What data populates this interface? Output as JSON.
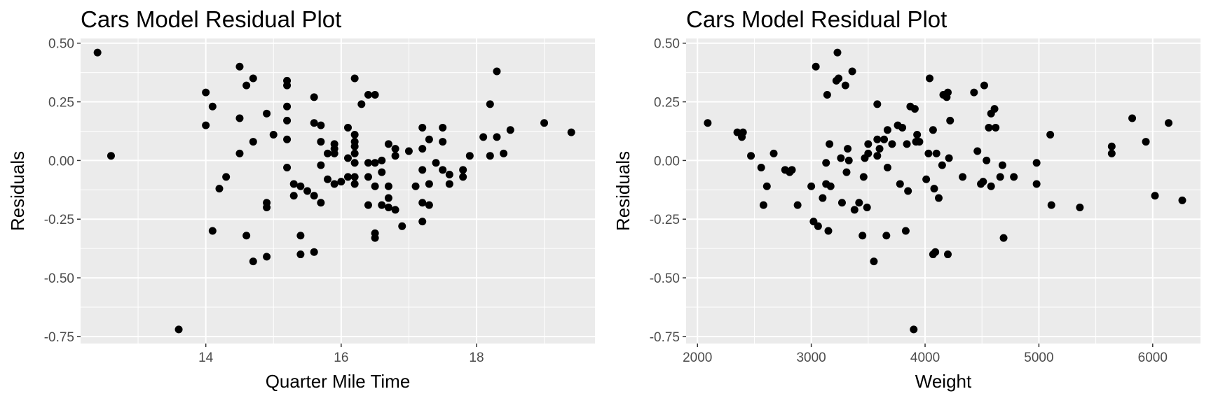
{
  "chart_data": [
    {
      "type": "scatter",
      "title": "Cars Model Residual Plot",
      "xlabel": "Quarter Mile Time",
      "ylabel": "Residuals",
      "xlim": [
        12.15,
        19.75
      ],
      "ylim": [
        -0.78,
        0.52
      ],
      "x_ticks": [
        14,
        16,
        18
      ],
      "x_tick_labels": [
        "14",
        "16",
        "18"
      ],
      "y_ticks": [
        0.5,
        0.25,
        0.0,
        -0.25,
        -0.5,
        -0.75
      ],
      "y_tick_labels": [
        "0.50",
        "0.25",
        "0.00",
        "-0.25",
        "-0.50",
        "-0.75"
      ],
      "grid": true,
      "point_color": "#000000",
      "panel_color": "#ebebeb",
      "points": [
        [
          12.4,
          0.46
        ],
        [
          12.6,
          0.02
        ],
        [
          13.6,
          -0.72
        ],
        [
          14.0,
          0.29
        ],
        [
          14.0,
          0.15
        ],
        [
          14.1,
          0.23
        ],
        [
          14.1,
          -0.3
        ],
        [
          14.2,
          -0.12
        ],
        [
          14.3,
          -0.07
        ],
        [
          14.5,
          0.4
        ],
        [
          14.5,
          0.18
        ],
        [
          14.5,
          0.03
        ],
        [
          14.6,
          0.32
        ],
        [
          14.6,
          -0.32
        ],
        [
          14.7,
          0.35
        ],
        [
          14.7,
          0.08
        ],
        [
          14.7,
          -0.43
        ],
        [
          14.9,
          0.2
        ],
        [
          14.9,
          -0.18
        ],
        [
          14.9,
          -0.2
        ],
        [
          14.9,
          -0.41
        ],
        [
          15.0,
          0.11
        ],
        [
          15.2,
          0.34
        ],
        [
          15.2,
          0.32
        ],
        [
          15.2,
          0.23
        ],
        [
          15.2,
          0.17
        ],
        [
          15.2,
          0.09
        ],
        [
          15.2,
          -0.03
        ],
        [
          15.3,
          -0.1
        ],
        [
          15.3,
          -0.15
        ],
        [
          15.4,
          -0.11
        ],
        [
          15.4,
          -0.32
        ],
        [
          15.4,
          -0.4
        ],
        [
          15.5,
          -0.13
        ],
        [
          15.6,
          0.27
        ],
        [
          15.6,
          0.16
        ],
        [
          15.6,
          -0.15
        ],
        [
          15.6,
          -0.39
        ],
        [
          15.7,
          0.15
        ],
        [
          15.7,
          0.08
        ],
        [
          15.7,
          -0.02
        ],
        [
          15.7,
          -0.18
        ],
        [
          15.8,
          0.03
        ],
        [
          15.8,
          -0.08
        ],
        [
          15.9,
          0.07
        ],
        [
          15.9,
          0.03
        ],
        [
          15.9,
          -0.1
        ],
        [
          15.9,
          0.05
        ],
        [
          16.0,
          -0.09
        ],
        [
          16.1,
          0.14
        ],
        [
          16.1,
          0.01
        ],
        [
          16.1,
          -0.07
        ],
        [
          16.2,
          0.35
        ],
        [
          16.2,
          0.11
        ],
        [
          16.2,
          0.08
        ],
        [
          16.2,
          0.06
        ],
        [
          16.2,
          0.03
        ],
        [
          16.2,
          -0.01
        ],
        [
          16.2,
          -0.07
        ],
        [
          16.2,
          -0.1
        ],
        [
          16.3,
          0.24
        ],
        [
          16.4,
          0.28
        ],
        [
          16.4,
          -0.01
        ],
        [
          16.4,
          -0.07
        ],
        [
          16.4,
          -0.19
        ],
        [
          16.5,
          0.28
        ],
        [
          16.5,
          -0.01
        ],
        [
          16.5,
          -0.11
        ],
        [
          16.5,
          -0.31
        ],
        [
          16.5,
          -0.33
        ],
        [
          16.6,
          0.0
        ],
        [
          16.6,
          -0.05
        ],
        [
          16.6,
          -0.19
        ],
        [
          16.7,
          0.07
        ],
        [
          16.7,
          -0.11
        ],
        [
          16.7,
          -0.16
        ],
        [
          16.7,
          -0.2
        ],
        [
          16.8,
          0.05
        ],
        [
          16.8,
          0.02
        ],
        [
          16.8,
          -0.21
        ],
        [
          16.9,
          -0.28
        ],
        [
          17.0,
          0.04
        ],
        [
          17.1,
          -0.11
        ],
        [
          17.2,
          0.14
        ],
        [
          17.2,
          0.05
        ],
        [
          17.2,
          -0.04
        ],
        [
          17.2,
          -0.18
        ],
        [
          17.2,
          -0.26
        ],
        [
          17.3,
          0.09
        ],
        [
          17.3,
          -0.1
        ],
        [
          17.3,
          -0.19
        ],
        [
          17.4,
          -0.01
        ],
        [
          17.5,
          0.14
        ],
        [
          17.5,
          0.08
        ],
        [
          17.5,
          -0.04
        ],
        [
          17.6,
          -0.06
        ],
        [
          17.6,
          -0.1
        ],
        [
          17.8,
          -0.04
        ],
        [
          17.8,
          -0.07
        ],
        [
          17.9,
          0.02
        ],
        [
          18.1,
          0.1
        ],
        [
          18.2,
          0.24
        ],
        [
          18.2,
          0.02
        ],
        [
          18.3,
          0.38
        ],
        [
          18.3,
          0.1
        ],
        [
          18.4,
          0.03
        ],
        [
          18.5,
          0.13
        ],
        [
          19.0,
          0.16
        ],
        [
          19.4,
          0.12
        ]
      ]
    },
    {
      "type": "scatter",
      "title": "Cars Model Residual Plot",
      "xlabel": "Weight",
      "ylabel": "Residuals",
      "xlim": [
        1900,
        6420
      ],
      "ylim": [
        -0.78,
        0.52
      ],
      "x_ticks": [
        2000,
        3000,
        4000,
        5000,
        6000
      ],
      "x_tick_labels": [
        "2000",
        "3000",
        "4000",
        "5000",
        "6000"
      ],
      "y_ticks": [
        0.5,
        0.25,
        0.0,
        -0.25,
        -0.5,
        -0.75
      ],
      "y_tick_labels": [
        "0.50",
        "0.25",
        "0.00",
        "-0.25",
        "-0.50",
        "-0.75"
      ],
      "grid": true,
      "point_color": "#000000",
      "panel_color": "#ebebeb",
      "points": [
        [
          2090,
          0.16
        ],
        [
          2350,
          0.12
        ],
        [
          2390,
          0.1
        ],
        [
          2400,
          0.12
        ],
        [
          2470,
          0.02
        ],
        [
          2560,
          -0.03
        ],
        [
          2580,
          -0.19
        ],
        [
          2610,
          -0.11
        ],
        [
          2670,
          0.03
        ],
        [
          2770,
          -0.04
        ],
        [
          2810,
          -0.05
        ],
        [
          2830,
          -0.04
        ],
        [
          2880,
          -0.19
        ],
        [
          3000,
          -0.11
        ],
        [
          3020,
          -0.26
        ],
        [
          3040,
          0.4
        ],
        [
          3060,
          -0.28
        ],
        [
          3100,
          -0.16
        ],
        [
          3130,
          -0.1
        ],
        [
          3130,
          -0.01
        ],
        [
          3140,
          0.28
        ],
        [
          3150,
          -0.3
        ],
        [
          3160,
          0.07
        ],
        [
          3170,
          -0.11
        ],
        [
          3220,
          0.34
        ],
        [
          3230,
          0.46
        ],
        [
          3240,
          0.35
        ],
        [
          3260,
          0.01
        ],
        [
          3270,
          -0.18
        ],
        [
          3300,
          0.32
        ],
        [
          3310,
          -0.05
        ],
        [
          3320,
          0.05
        ],
        [
          3330,
          0.0
        ],
        [
          3360,
          0.38
        ],
        [
          3380,
          -0.21
        ],
        [
          3420,
          -0.18
        ],
        [
          3450,
          -0.32
        ],
        [
          3460,
          -0.07
        ],
        [
          3470,
          0.01
        ],
        [
          3490,
          -0.2
        ],
        [
          3500,
          0.03
        ],
        [
          3500,
          0.07
        ],
        [
          3550,
          -0.43
        ],
        [
          3580,
          0.24
        ],
        [
          3580,
          0.02
        ],
        [
          3580,
          0.09
        ],
        [
          3600,
          0.05
        ],
        [
          3640,
          0.09
        ],
        [
          3660,
          -0.32
        ],
        [
          3670,
          -0.03
        ],
        [
          3670,
          0.13
        ],
        [
          3710,
          0.07
        ],
        [
          3760,
          0.15
        ],
        [
          3780,
          -0.1
        ],
        [
          3800,
          0.14
        ],
        [
          3830,
          -0.3
        ],
        [
          3840,
          0.07
        ],
        [
          3850,
          -0.13
        ],
        [
          3870,
          0.23
        ],
        [
          3900,
          -0.72
        ],
        [
          3910,
          0.22
        ],
        [
          3920,
          0.08
        ],
        [
          3930,
          0.11
        ],
        [
          3950,
          0.08
        ],
        [
          4010,
          -0.08
        ],
        [
          4030,
          0.03
        ],
        [
          4040,
          0.35
        ],
        [
          4070,
          -0.4
        ],
        [
          4070,
          0.13
        ],
        [
          4080,
          -0.12
        ],
        [
          4090,
          -0.39
        ],
        [
          4100,
          0.03
        ],
        [
          4120,
          -0.16
        ],
        [
          4150,
          -0.02
        ],
        [
          4160,
          0.28
        ],
        [
          4190,
          0.27
        ],
        [
          4200,
          0.29
        ],
        [
          4200,
          -0.4
        ],
        [
          4210,
          0.01
        ],
        [
          4220,
          0.17
        ],
        [
          4330,
          -0.07
        ],
        [
          4430,
          0.29
        ],
        [
          4460,
          0.04
        ],
        [
          4490,
          -0.1
        ],
        [
          4510,
          -0.09
        ],
        [
          4520,
          0.32
        ],
        [
          4540,
          0.0
        ],
        [
          4560,
          0.14
        ],
        [
          4580,
          -0.11
        ],
        [
          4580,
          0.2
        ],
        [
          4610,
          0.22
        ],
        [
          4620,
          0.14
        ],
        [
          4660,
          -0.07
        ],
        [
          4680,
          -0.02
        ],
        [
          4690,
          -0.33
        ],
        [
          4780,
          -0.07
        ],
        [
          4980,
          -0.01
        ],
        [
          4980,
          -0.1
        ],
        [
          5100,
          0.11
        ],
        [
          5110,
          -0.19
        ],
        [
          5360,
          -0.2
        ],
        [
          5640,
          0.06
        ],
        [
          5640,
          0.03
        ],
        [
          5820,
          0.18
        ],
        [
          5940,
          0.08
        ],
        [
          6020,
          -0.15
        ],
        [
          6140,
          0.16
        ],
        [
          6260,
          -0.17
        ]
      ]
    }
  ]
}
